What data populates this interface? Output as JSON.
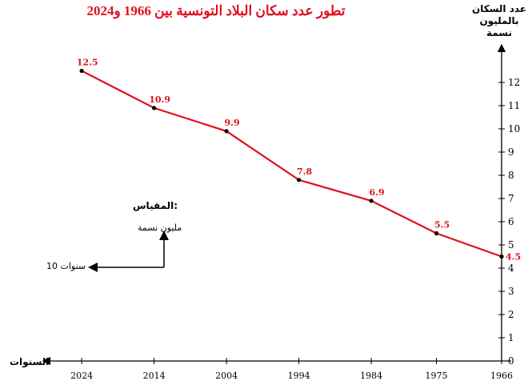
{
  "chart_data": {
    "type": "line",
    "title": "تطور عدد سكان البلاد التونسية بين 1966 و2024",
    "ylabel": "عدد السكان\nبالمليون\nنسمة",
    "xlabel": "السنوات",
    "x": [
      "1966",
      "1975",
      "1984",
      "1994",
      "2004",
      "2014",
      "2024"
    ],
    "y_ticks": [
      "0",
      "1",
      "2",
      "3",
      "4",
      "5",
      "6",
      "7",
      "8",
      "9",
      "10",
      "11",
      "12"
    ],
    "ylim": [
      0,
      12
    ],
    "series": [
      {
        "values": [
          4.5,
          5.5,
          6.9,
          7.8,
          9.9,
          10.9,
          12.5
        ],
        "color": "#e0101e"
      }
    ],
    "data_labels": [
      "4.5",
      "5.5",
      "6.9",
      "7.8",
      "9.9",
      "10.9",
      "12.5"
    ],
    "x_direction": "right-to-left",
    "grid": false
  },
  "scale": {
    "title": "المقياس:",
    "y_unit": "مليون نسمة",
    "x_unit": "10 سنوات"
  }
}
